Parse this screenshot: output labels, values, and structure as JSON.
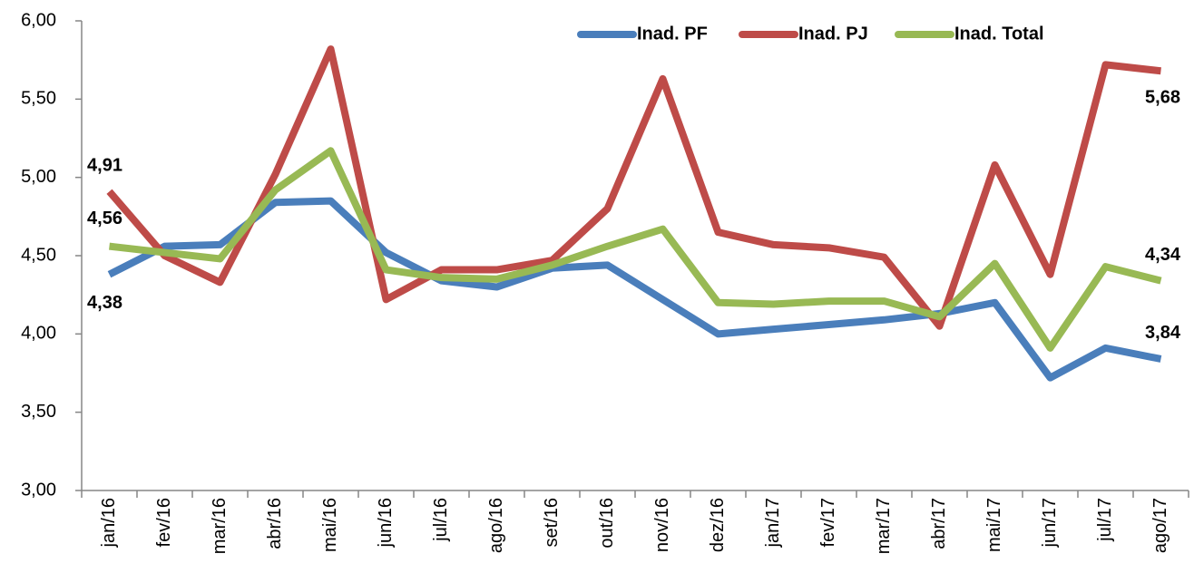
{
  "chart_data": {
    "type": "line",
    "categories": [
      "jan/16",
      "fev/16",
      "mar/16",
      "abr/16",
      "mai/16",
      "jun/16",
      "jul/16",
      "ago/16",
      "set/16",
      "out/16",
      "nov/16",
      "dez/16",
      "jan/17",
      "fev/17",
      "mar/17",
      "abr/17",
      "mai/17",
      "jun/17",
      "jul/17",
      "ago/17"
    ],
    "series": [
      {
        "name": "Inad. PF",
        "color": "#4a7ebb",
        "values": [
          4.38,
          4.56,
          4.57,
          4.84,
          4.85,
          4.52,
          4.34,
          4.3,
          4.42,
          4.44,
          4.22,
          4.0,
          4.03,
          4.06,
          4.09,
          4.13,
          4.2,
          3.72,
          3.91,
          3.84
        ],
        "value_labels": [
          "4,38",
          null,
          null,
          null,
          null,
          null,
          null,
          null,
          null,
          null,
          null,
          null,
          null,
          null,
          null,
          null,
          null,
          null,
          null,
          "3,84"
        ]
      },
      {
        "name": "Inad. PJ",
        "color": "#be4b48",
        "values": [
          4.91,
          4.5,
          4.33,
          5.02,
          5.82,
          4.22,
          4.41,
          4.41,
          4.47,
          4.8,
          5.63,
          4.65,
          4.57,
          4.55,
          4.49,
          4.05,
          5.08,
          4.38,
          5.72,
          5.68
        ],
        "value_labels": [
          "4,91",
          null,
          null,
          null,
          null,
          null,
          null,
          null,
          null,
          null,
          null,
          null,
          null,
          null,
          null,
          null,
          null,
          null,
          null,
          "5,68"
        ]
      },
      {
        "name": "Inad. Total",
        "color": "#98b954",
        "values": [
          4.56,
          4.52,
          4.48,
          4.92,
          5.17,
          4.41,
          4.36,
          4.35,
          4.44,
          4.56,
          4.67,
          4.2,
          4.19,
          4.21,
          4.21,
          4.11,
          4.45,
          3.91,
          4.43,
          4.34
        ],
        "value_labels": [
          "4,56",
          null,
          null,
          null,
          null,
          null,
          null,
          null,
          null,
          null,
          null,
          null,
          null,
          null,
          null,
          null,
          null,
          null,
          null,
          "4,34"
        ]
      }
    ],
    "ylim": [
      3,
      6
    ],
    "yticks": [
      {
        "value": 3,
        "label": "3,00"
      },
      {
        "value": 3.5,
        "label": "3,50"
      },
      {
        "value": 4,
        "label": "4,00"
      },
      {
        "value": 4.5,
        "label": "4,50"
      },
      {
        "value": 5,
        "label": "5,00"
      },
      {
        "value": 5.5,
        "label": "5,50"
      },
      {
        "value": 6,
        "label": "6,00"
      }
    ],
    "grid": false,
    "legend": "top-right"
  }
}
